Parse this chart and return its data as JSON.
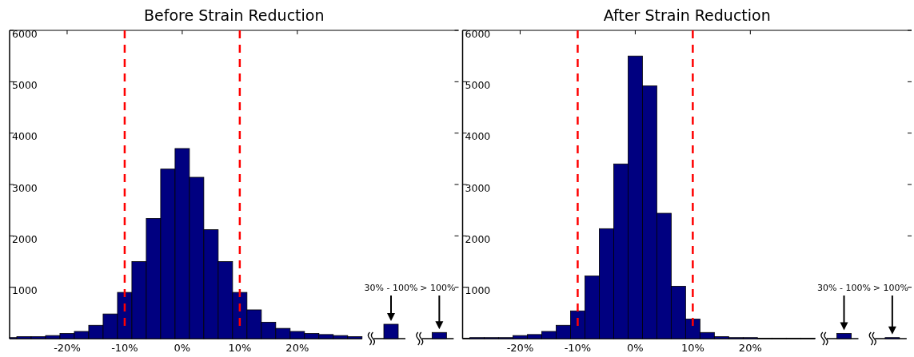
{
  "chart_data": [
    {
      "type": "histogram",
      "title": "Before Strain Reduction",
      "color": "#000080",
      "bins": [
        -30,
        -28.75,
        -26.25,
        -23.75,
        -21.25,
        -18.75,
        -16.25,
        -13.75,
        -11.25,
        -8.75,
        -6.25,
        -3.75,
        -1.25,
        1.25,
        3.75,
        6.25,
        8.75,
        11.25,
        13.75,
        16.25,
        18.75,
        21.25,
        23.75,
        26.25,
        28.75,
        31.25
      ],
      "values": [
        20,
        40,
        40,
        60,
        100,
        140,
        260,
        480,
        900,
        1500,
        2340,
        3300,
        3700,
        3140,
        2120,
        1500,
        900,
        560,
        320,
        200,
        140,
        100,
        80,
        60,
        40
      ],
      "xlim": [
        -30,
        31.25
      ],
      "xticks": [
        {
          "value": -20,
          "label": "-20%"
        },
        {
          "value": -10,
          "label": "-10%"
        },
        {
          "value": 0,
          "label": "0%"
        },
        {
          "value": 10,
          "label": "10%"
        },
        {
          "value": 20,
          "label": "20%"
        }
      ],
      "ylim": [
        0,
        6000
      ],
      "yticks": [
        1000,
        2000,
        3000,
        4000,
        5000,
        6000
      ],
      "ref_lines": [
        {
          "axis": "x",
          "value": -10,
          "color": "#ff0000",
          "line_style": "dashed"
        },
        {
          "axis": "x",
          "value": 10,
          "color": "#ff0000",
          "line_style": "dashed"
        }
      ]
    },
    {
      "type": "bar",
      "color": "#000080",
      "categories": [
        "30% - 100%",
        "> 100%"
      ],
      "values": [
        280,
        120
      ],
      "ylim": [
        0,
        6000
      ],
      "tick_labels": "x"
    },
    {
      "type": "histogram",
      "title": "After Strain Reduction",
      "color": "#000080",
      "bins": [
        -30,
        -28.75,
        -26.25,
        -23.75,
        -21.25,
        -18.75,
        -16.25,
        -13.75,
        -11.25,
        -8.75,
        -6.25,
        -3.75,
        -1.25,
        1.25,
        3.75,
        6.25,
        8.75,
        11.25,
        13.75,
        16.25,
        18.75,
        21.25,
        23.75,
        26.25,
        28.75,
        31.25
      ],
      "values": [
        10,
        20,
        20,
        20,
        60,
        80,
        140,
        260,
        540,
        1220,
        2140,
        3400,
        5500,
        4920,
        2440,
        1020,
        380,
        120,
        40,
        20,
        20,
        10,
        10,
        10,
        10
      ],
      "xlim": [
        -30,
        31.25
      ],
      "xticks": [
        {
          "value": -20,
          "label": "-20%"
        },
        {
          "value": -10,
          "label": "-10%"
        },
        {
          "value": 0,
          "label": "0%"
        },
        {
          "value": 10,
          "label": "10%"
        },
        {
          "value": 20,
          "label": "20%"
        }
      ],
      "ylim": [
        0,
        6000
      ],
      "yticks": [
        1000,
        2000,
        3000,
        4000,
        5000,
        6000
      ],
      "ref_lines": [
        {
          "axis": "x",
          "value": -10,
          "color": "#ff0000",
          "line_style": "dashed"
        },
        {
          "axis": "x",
          "value": 10,
          "color": "#ff0000",
          "line_style": "dashed"
        }
      ]
    },
    {
      "type": "bar",
      "color": "#000080",
      "categories": [
        "30% - 100%",
        "> 100%"
      ],
      "values": [
        100,
        20
      ],
      "ylim": [
        0,
        6000
      ],
      "tick_labels": "x"
    }
  ]
}
